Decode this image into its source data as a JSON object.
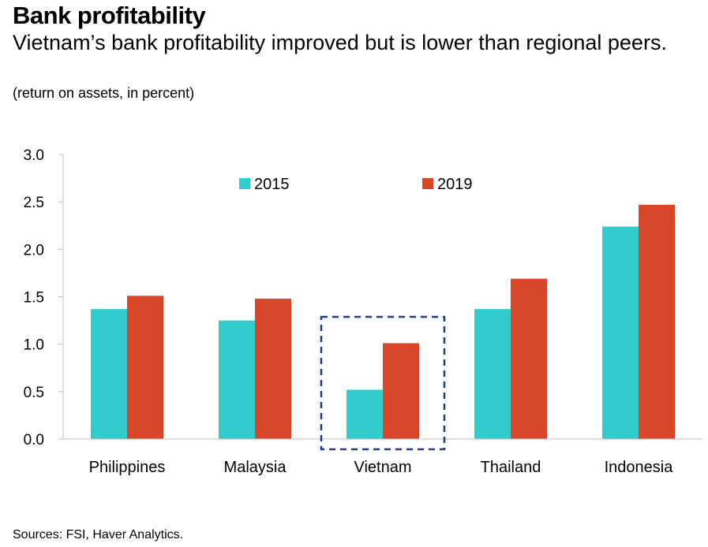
{
  "title": "Bank profitability",
  "subtitle": "Vietnam’s bank profitability improved but is lower than regional peers.",
  "note": "(return on assets, in percent)",
  "source": "Sources: FSI, Haver Analytics.",
  "colors": {
    "s2015": "#33CCCC",
    "s2019": "#D9472B",
    "highlight": "#1F3A93",
    "axis": "#BFBFBF"
  },
  "chart_data": {
    "type": "bar",
    "title": "Bank profitability",
    "xlabel": "",
    "ylabel": "",
    "ylim": [
      0,
      3
    ],
    "yticks": [
      "0.0",
      "0.5",
      "1.0",
      "1.5",
      "2.0",
      "2.5",
      "3.0"
    ],
    "categories": [
      "Philippines",
      "Malaysia",
      "Vietnam",
      "Thailand",
      "Indonesia"
    ],
    "series": [
      {
        "name": "2015",
        "values": [
          1.37,
          1.25,
          0.52,
          1.37,
          2.24
        ]
      },
      {
        "name": "2019",
        "values": [
          1.51,
          1.48,
          1.01,
          1.69,
          2.47
        ]
      }
    ],
    "highlight": "Vietnam",
    "legend": "top-center",
    "grid": false
  }
}
